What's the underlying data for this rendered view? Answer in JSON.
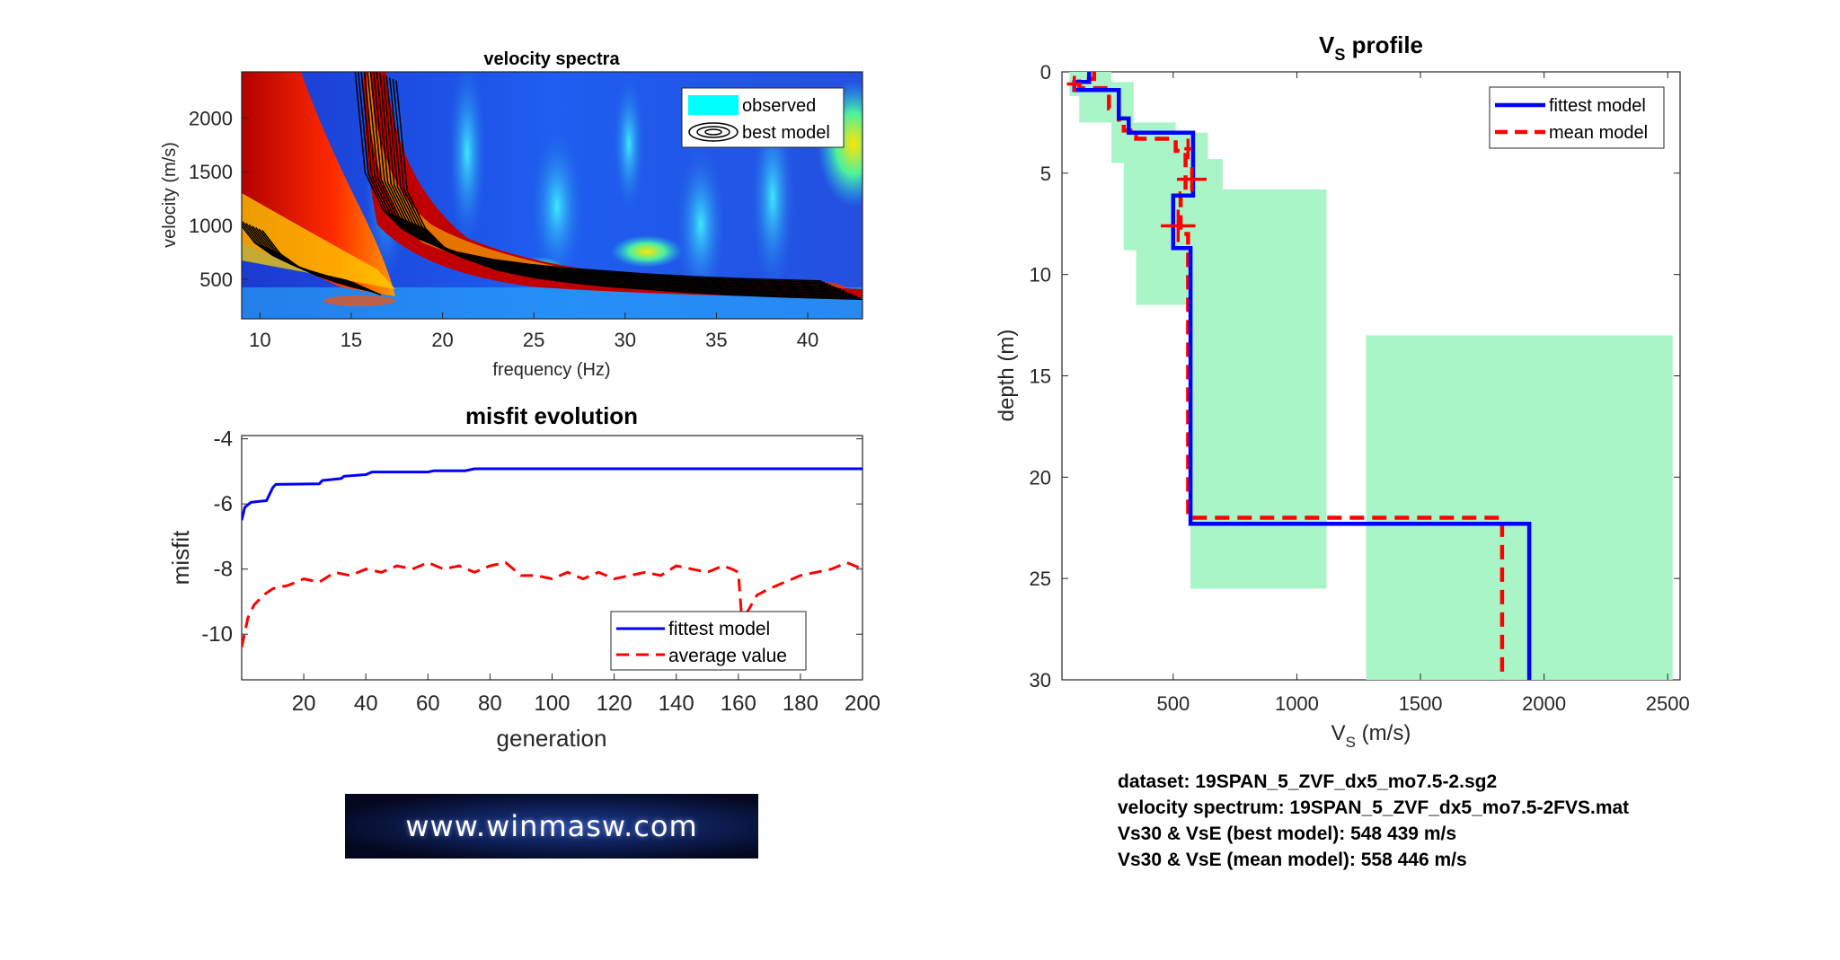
{
  "colors": {
    "fittest": "#0000ff",
    "mean": "#ff0000",
    "uncertainty": "#aaf5c8",
    "observed_legend": "#00ffff",
    "contour": "#000000"
  },
  "chart_data": [
    {
      "type": "heatmap",
      "title": "velocity spectra",
      "xlabel": "frequency (Hz)",
      "ylabel": "velocity (m/s)",
      "xlim": [
        9,
        43
      ],
      "ylim": [
        130,
        2430
      ],
      "xticks": [
        10,
        15,
        20,
        25,
        30,
        35,
        40
      ],
      "yticks": [
        500,
        1000,
        1500,
        2000
      ],
      "legend": {
        "position": "top-right",
        "entries": [
          "observed",
          "best model"
        ]
      },
      "modes": [
        {
          "x": [
            9.5,
            10.5,
            11.5,
            12.5,
            13.5,
            14.5,
            15.5,
            16.0
          ],
          "y": [
            1000,
            780,
            660,
            580,
            520,
            470,
            430,
            400
          ]
        },
        {
          "x": [
            16.4,
            17,
            18,
            19,
            20,
            22,
            24,
            26,
            28,
            30,
            32,
            33,
            35,
            38,
            42
          ],
          "y": [
            2430,
            1400,
            1050,
            880,
            780,
            660,
            590,
            545,
            510,
            485,
            460,
            450,
            430,
            410,
            390
          ]
        }
      ]
    },
    {
      "type": "line",
      "title": "misfit evolution",
      "xlabel": "generation",
      "ylabel": "misfit",
      "xlim": [
        0,
        200
      ],
      "ylim": [
        -11.4,
        -3.9
      ],
      "xticks": [
        20,
        40,
        60,
        80,
        100,
        120,
        140,
        160,
        180,
        200
      ],
      "yticks": [
        -4,
        -6,
        -8,
        -10
      ],
      "legend": {
        "position": "bottom-right"
      },
      "series": [
        {
          "name": "fittest model",
          "x": [
            0,
            1,
            3,
            8,
            9,
            10,
            11,
            25,
            26,
            32,
            33,
            40,
            42,
            60,
            62,
            72,
            75,
            200
          ],
          "y": [
            -6.5,
            -6.1,
            -5.95,
            -5.9,
            -5.7,
            -5.5,
            -5.4,
            -5.38,
            -5.28,
            -5.22,
            -5.15,
            -5.1,
            -5.02,
            -5.02,
            -4.98,
            -4.98,
            -4.92,
            -4.92
          ]
        },
        {
          "name": "average value",
          "x": [
            0,
            2,
            4,
            7,
            10,
            15,
            20,
            25,
            30,
            35,
            40,
            45,
            50,
            55,
            60,
            65,
            70,
            75,
            80,
            85,
            90,
            95,
            100,
            105,
            110,
            115,
            120,
            125,
            130,
            135,
            140,
            145,
            150,
            155,
            158,
            160,
            161,
            163,
            166,
            170,
            175,
            180,
            185,
            190,
            195,
            200
          ],
          "y": [
            -10.4,
            -9.5,
            -9.1,
            -8.8,
            -8.6,
            -8.5,
            -8.3,
            -8.4,
            -8.1,
            -8.2,
            -8.0,
            -8.1,
            -7.9,
            -8.0,
            -7.8,
            -8.0,
            -7.9,
            -8.1,
            -7.9,
            -7.8,
            -8.2,
            -8.2,
            -8.3,
            -8.1,
            -8.3,
            -8.1,
            -8.3,
            -8.2,
            -8.1,
            -8.2,
            -7.9,
            -8.0,
            -8.1,
            -7.9,
            -8.0,
            -8.1,
            -9.4,
            -9.3,
            -8.8,
            -8.6,
            -8.4,
            -8.2,
            -8.1,
            -8.0,
            -7.8,
            -8.0
          ]
        }
      ]
    },
    {
      "type": "line",
      "title": "V",
      "title_sub": "S",
      "title_suffix": " profile",
      "xlabel": "V",
      "xlabel_sub": "S",
      "xlabel_suffix": " (m/s)",
      "ylabel": "depth (m)",
      "xlim": [
        50,
        2550
      ],
      "ylim": [
        0,
        30
      ],
      "xticks": [
        500,
        1000,
        1500,
        2000,
        2500
      ],
      "yticks": [
        0,
        5,
        10,
        15,
        20,
        25,
        30
      ],
      "legend": {
        "position": "top-right"
      },
      "uncertainty_boxes": [
        {
          "vs": [
            80,
            250
          ],
          "depth": [
            0,
            1.2
          ]
        },
        {
          "vs": [
            120,
            310
          ],
          "depth": [
            1.0,
            2.5
          ]
        },
        {
          "vs": [
            230,
            340
          ],
          "depth": [
            0.5,
            2.5
          ]
        },
        {
          "vs": [
            250,
            510
          ],
          "depth": [
            2.5,
            4.5
          ]
        },
        {
          "vs": [
            300,
            580
          ],
          "depth": [
            3.0,
            8.8
          ]
        },
        {
          "vs": [
            500,
            640
          ],
          "depth": [
            3.0,
            4.5
          ]
        },
        {
          "vs": [
            520,
            700
          ],
          "depth": [
            4.3,
            5.8
          ]
        },
        {
          "vs": [
            350,
            570
          ],
          "depth": [
            8.5,
            11.5
          ]
        },
        {
          "vs": [
            570,
            1120
          ],
          "depth": [
            5.8,
            25.5
          ]
        },
        {
          "vs": [
            1280,
            2520
          ],
          "depth": [
            13.0,
            30
          ]
        }
      ],
      "series": [
        {
          "name": "fittest model",
          "vs": [
            160,
            160,
            100,
            100,
            280,
            280,
            320,
            320,
            580,
            580,
            500,
            500,
            570,
            570,
            1940,
            1940
          ],
          "depth": [
            0,
            0.5,
            0.5,
            0.9,
            0.9,
            2.3,
            2.3,
            3.0,
            3.0,
            6.1,
            6.1,
            8.7,
            8.7,
            22.3,
            22.3,
            30
          ]
        },
        {
          "name": "mean model",
          "vs": [
            180,
            180,
            120,
            120,
            240,
            240,
            280,
            280,
            300,
            300,
            350,
            350,
            510,
            510,
            550,
            550,
            530,
            530,
            560,
            560,
            1830,
            1830
          ],
          "depth": [
            0,
            0.35,
            0.35,
            0.8,
            0.8,
            1.8,
            1.8,
            2.5,
            2.5,
            2.9,
            2.9,
            3.3,
            3.3,
            3.9,
            3.9,
            6.0,
            6.0,
            8.0,
            8.0,
            22.0,
            22.0,
            30
          ]
        }
      ],
      "error_bars": [
        {
          "vs": 100,
          "depth": 0.6,
          "dvs": 30,
          "dd": 0.4
        },
        {
          "vs": 560,
          "depth": 3.8,
          "dvs": 15,
          "dd": 0.5
        },
        {
          "vs": 575,
          "depth": 5.3,
          "dvs": 60,
          "dd": 0.6
        },
        {
          "vs": 520,
          "depth": 7.6,
          "dvs": 70,
          "dd": 0.8
        }
      ]
    }
  ],
  "info": {
    "line1": "dataset: 19SPAN_5_ZVF_dx5_mo7.5-2.sg2",
    "line2": "velocity spectrum: 19SPAN_5_ZVF_dx5_mo7.5-2FVS.mat",
    "line3": "Vs30 & VsE (best model): 548  439 m/s",
    "line4": "Vs30 & VsE (mean model): 558  446 m/s"
  },
  "logo": {
    "text": "www.winmasw.com"
  }
}
